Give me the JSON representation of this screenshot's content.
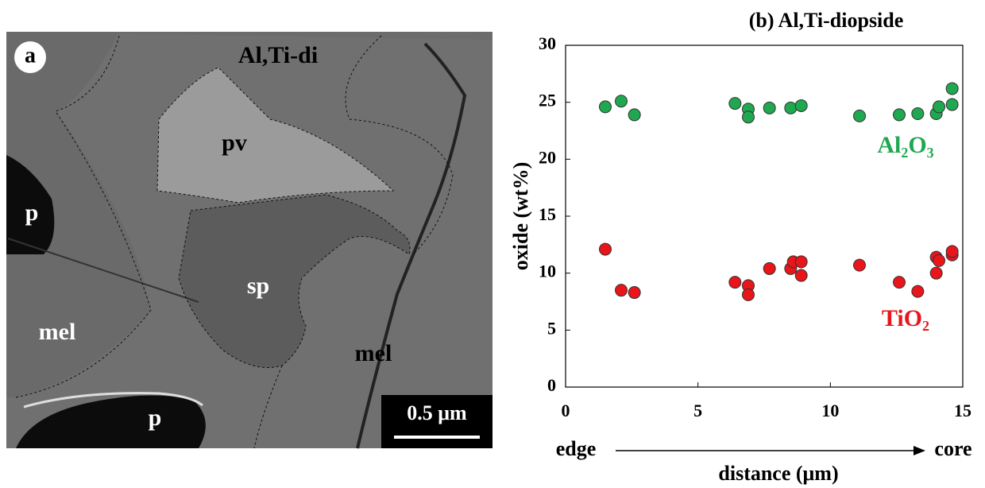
{
  "image_panel": {
    "label": "a",
    "regions": [
      "Al,Ti-di",
      "pv",
      "p",
      "sp",
      "mel",
      "mel",
      "p"
    ],
    "scale_bar": "0.5 μm"
  },
  "chart_data": {
    "type": "scatter",
    "title": "(b) Al,Ti-diopside",
    "y_label": "oxide (wt%)",
    "x_label": "distance (μm)",
    "annotations": [
      "edge",
      "core"
    ],
    "xlim": [
      0,
      15
    ],
    "xticks": [
      0,
      5,
      10,
      15
    ],
    "ylim": [
      0,
      30
    ],
    "yticks": [
      0,
      5,
      10,
      15,
      20,
      25,
      30
    ],
    "series": [
      {
        "name": "Al₂O₃",
        "color": "#1fa84f",
        "x": [
          1.5,
          2.1,
          2.6,
          6.4,
          6.9,
          6.9,
          7.7,
          8.5,
          8.9,
          11.1,
          12.6,
          13.3,
          14.0,
          14.1,
          14.6,
          14.6
        ],
        "values": [
          24.6,
          25.1,
          23.9,
          24.9,
          24.4,
          23.7,
          24.5,
          24.5,
          24.7,
          23.8,
          23.9,
          24.0,
          24.0,
          24.6,
          26.2,
          24.8
        ]
      },
      {
        "name": "TiO₂",
        "color": "#e8151b",
        "x": [
          1.5,
          2.1,
          2.6,
          6.4,
          6.9,
          6.9,
          7.7,
          8.5,
          8.6,
          8.9,
          8.9,
          11.1,
          12.6,
          13.3,
          14.0,
          14.0,
          14.1,
          14.6,
          14.6
        ],
        "values": [
          12.1,
          8.5,
          8.3,
          9.2,
          8.9,
          8.1,
          10.4,
          10.4,
          11.0,
          11.0,
          9.8,
          10.7,
          9.2,
          8.4,
          10.0,
          11.4,
          11.1,
          11.6,
          11.9
        ]
      }
    ]
  }
}
